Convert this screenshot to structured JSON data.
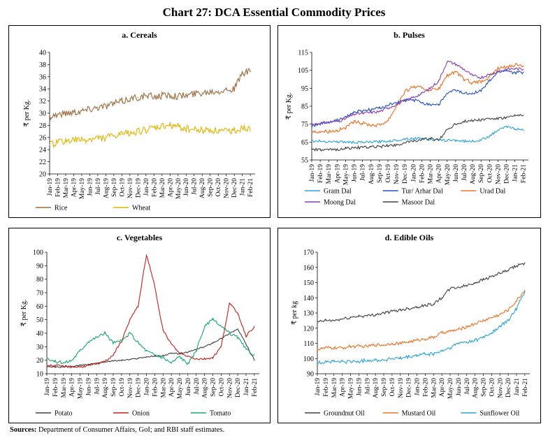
{
  "title": "Chart 27: DCA Essential Commodity Prices",
  "source_label": "Sources:",
  "source_text": "Department of Consumer Affairs, GoI; and RBI staff estimates.",
  "months": [
    "Jan-19",
    "Feb-19",
    "Mar-19",
    "Apr-19",
    "May-19",
    "Jun-19",
    "Jul-19",
    "Aug-19",
    "Sep-19",
    "Oct-19",
    "Nov-19",
    "Dec-19",
    "Jan-20",
    "Feb-20",
    "Mar-20",
    "Apr-20",
    "May-20",
    "Jun-20",
    "Jul-20",
    "Aug-20",
    "Sep-20",
    "Oct-20",
    "Nov-20",
    "Dec-20",
    "Jan-21",
    "Feb-21"
  ],
  "chart_data": [
    {
      "id": "a",
      "type": "line",
      "title": "a. Cereals",
      "ylabel": "₹ per Kg.",
      "ylim": [
        20,
        40
      ],
      "yticks": [
        20,
        22,
        24,
        26,
        28,
        30,
        32,
        34,
        36,
        38,
        40
      ],
      "xtick_labels": [
        "Jan-19",
        "Feb-19",
        "Mar-19",
        "Apr-19",
        "May-19",
        "Jun-19",
        "Jul-19",
        "Aug-19",
        "Sep-19",
        "Oct-19",
        "Nov-19",
        "Dec-19",
        "Jan-20",
        "Feb-20",
        "Mar-20",
        "Apr-20",
        "May-20",
        "Jun-20",
        "Jul-20",
        "Aug-20",
        "Sep-20",
        "Oct-20",
        "Nov-20",
        "Dec-20",
        "Jan-21",
        "Feb-21"
      ],
      "legend_position": "bottom",
      "series": [
        {
          "name": "Rice",
          "color": "#9c6b3c",
          "noise": 0.6,
          "values": [
            29.5,
            29.8,
            30.0,
            30.2,
            30.4,
            30.7,
            31.0,
            31.2,
            31.6,
            31.9,
            32.4,
            32.6,
            32.8,
            32.7,
            32.9,
            33.0,
            32.8,
            32.9,
            33.2,
            33.4,
            33.6,
            33.7,
            33.9,
            34.0,
            36.5,
            36.8
          ]
        },
        {
          "name": "Wheat",
          "color": "#e3b300",
          "noise": 0.6,
          "values": [
            24.8,
            25.2,
            25.4,
            25.6,
            25.5,
            25.7,
            25.9,
            26.0,
            26.2,
            26.5,
            26.8,
            27.0,
            27.2,
            27.5,
            27.8,
            28.0,
            27.8,
            27.5,
            27.3,
            27.2,
            27.3,
            27.1,
            27.0,
            27.2,
            27.6,
            27.1
          ]
        }
      ]
    },
    {
      "id": "b",
      "type": "line",
      "title": "b. Pulses",
      "ylabel": "₹ per Kg.",
      "ylim": [
        55,
        115
      ],
      "yticks": [
        55,
        65,
        75,
        85,
        95,
        105,
        115
      ],
      "xtick_labels": [
        "Jan-19",
        "Feb-19",
        "Mar-19",
        "Apr-19",
        "May-19",
        "Jun-19",
        "Jul-19",
        "Aug-19",
        "Sep-19",
        "Oct-19",
        "Nov-19",
        "Dec-19",
        "Jan-20",
        "Feb-20",
        "Mar-20",
        "Apr-20",
        "May-20",
        "Jun-20",
        "Jul-20",
        "Aug-20",
        "Sep-20",
        "Oct-20",
        "Nov-20",
        "Dec-20",
        "Jan-21",
        "Feb-21"
      ],
      "legend_position": "bottom",
      "series": [
        {
          "name": "Gram Dal",
          "color": "#2aa4dc",
          "noise": 0.7,
          "values": [
            65.5,
            65.5,
            65.3,
            65.2,
            65.0,
            64.8,
            64.8,
            65.0,
            65.2,
            65.5,
            66.0,
            66.8,
            67.0,
            67.0,
            66.5,
            65.8,
            66.0,
            66.0,
            65.5,
            65.5,
            66.0,
            68.5,
            71.5,
            73.5,
            72.5,
            71.5
          ]
        },
        {
          "name": "Tur/ Arhar Dal",
          "color": "#1f4fc8",
          "noise": 0.9,
          "values": [
            74.0,
            75.0,
            76.0,
            77.0,
            79.0,
            81.5,
            82.5,
            83.0,
            84.0,
            85.5,
            87.0,
            88.0,
            88.5,
            87.0,
            86.0,
            86.0,
            92.0,
            94.0,
            92.0,
            92.5,
            93.5,
            99.0,
            104.0,
            105.0,
            103.5,
            104.0
          ]
        },
        {
          "name": "Urad Dal",
          "color": "#f07020",
          "noise": 1.0,
          "values": [
            70.5,
            71.0,
            71.0,
            71.5,
            73.0,
            76.0,
            75.5,
            74.5,
            74.5,
            77.0,
            85.0,
            93.0,
            96.0,
            95.0,
            94.0,
            94.5,
            102.0,
            104.0,
            100.0,
            98.0,
            98.5,
            101.0,
            106.0,
            107.0,
            108.0,
            107.5
          ]
        },
        {
          "name": "Moong Dal",
          "color": "#8a3fb8",
          "noise": 0.8,
          "values": [
            75.0,
            75.5,
            76.0,
            76.5,
            78.0,
            80.5,
            81.0,
            81.5,
            82.0,
            84.0,
            86.0,
            88.0,
            90.0,
            92.0,
            95.0,
            99.0,
            110.0,
            108.5,
            105.5,
            102.0,
            101.0,
            102.5,
            104.5,
            105.5,
            106.0,
            105.5
          ]
        },
        {
          "name": "Masoor Dal",
          "color": "#404040",
          "noise": 0.8,
          "values": [
            61.0,
            60.5,
            60.5,
            61.0,
            61.5,
            61.8,
            62.0,
            62.2,
            62.5,
            63.0,
            63.5,
            64.5,
            65.5,
            66.5,
            67.0,
            66.0,
            72.0,
            75.0,
            76.5,
            77.0,
            77.5,
            78.0,
            78.0,
            78.5,
            79.5,
            80.0
          ]
        }
      ]
    },
    {
      "id": "c",
      "type": "line",
      "title": "c. Vegetables",
      "ylabel": "₹ per Kg.",
      "ylim": [
        10,
        100
      ],
      "yticks": [
        10,
        20,
        30,
        40,
        50,
        60,
        70,
        80,
        90,
        100
      ],
      "xtick_labels": [
        "Jan-19",
        "Feb-19",
        "Mar-19",
        "Apr-19",
        "May-19",
        "Jun-19",
        "Jul-19",
        "Aug-19",
        "Sep-19",
        "Oct-19",
        "Nov-19",
        "Dec-19",
        "Jan-20",
        "Feb-20",
        "Mar-20",
        "Apr-20",
        "May-20",
        "Jun-20",
        "Jul-20",
        "Aug-20",
        "Sep-20",
        "Oct-20",
        "Nov-20",
        "Dec-20",
        "Jan-21",
        "Feb-21"
      ],
      "legend_position": "bottom",
      "series": [
        {
          "name": "Potato",
          "color": "#404040",
          "noise": 0.5,
          "values": [
            15,
            15,
            15,
            15.5,
            16,
            17,
            18,
            19,
            19.5,
            20,
            20.5,
            21.5,
            22.5,
            23,
            23.5,
            25,
            25,
            26,
            28,
            30,
            33,
            36,
            40,
            43,
            32,
            20
          ]
        },
        {
          "name": "Onion",
          "color": "#c8201e",
          "noise": 0.8,
          "values": [
            16,
            16,
            15.5,
            15,
            15,
            16,
            17,
            19,
            24,
            34,
            50,
            60,
            98,
            75,
            42,
            32,
            25,
            23,
            21,
            21,
            22,
            30,
            62,
            55,
            38,
            45
          ]
        },
        {
          "name": "Tomato",
          "color": "#18a870",
          "noise": 1.2,
          "values": [
            22,
            19,
            18,
            20,
            27,
            34,
            37,
            40,
            33,
            34,
            40,
            33,
            27,
            24,
            22,
            18,
            23,
            17,
            27,
            45,
            50,
            45,
            40,
            37,
            28,
            24
          ]
        }
      ]
    },
    {
      "id": "d",
      "type": "line",
      "title": "d. Edible Oils",
      "ylabel": "₹ per kg",
      "ylim": [
        90,
        170
      ],
      "yticks": [
        90,
        100,
        110,
        120,
        130,
        140,
        150,
        160,
        170
      ],
      "xtick_labels": [
        "Jan-19",
        "Feb-19",
        "Mar-19",
        "Apr-19",
        "May-19",
        "Jun-19",
        "Jul-19",
        "Aug-19",
        "Sep-19",
        "Oct-19",
        "Nov-19",
        "Dec-19",
        "Jan-20",
        "Feb-20",
        "Mar-20",
        "Apr-20",
        "May-20",
        "Jun-20",
        "Jul-20",
        "Aug-20",
        "Sep-20",
        "Oct-20",
        "Nov-20",
        "Dec-20",
        "Jan-21",
        "Feb-21"
      ],
      "legend_position": "bottom",
      "series": [
        {
          "name": "Groundnut Oil",
          "color": "#404040",
          "noise": 1.0,
          "values": [
            124,
            125,
            125,
            126,
            127,
            128,
            128,
            129,
            130,
            131,
            132,
            133,
            134,
            135,
            136,
            140,
            146,
            147,
            148,
            150,
            152,
            154,
            156,
            158,
            161,
            163
          ]
        },
        {
          "name": "Mustard Oil",
          "color": "#f07020",
          "noise": 1.0,
          "values": [
            106,
            107,
            107,
            107,
            108,
            108,
            108,
            109,
            109,
            110,
            110,
            111,
            112,
            113,
            114,
            117,
            118,
            119,
            121,
            123,
            125,
            127,
            129,
            132,
            138,
            145
          ]
        },
        {
          "name": "Sunflower Oil",
          "color": "#2aa4dc",
          "noise": 1.2,
          "values": [
            97,
            98,
            98,
            98,
            98,
            98,
            99,
            99,
            99,
            100,
            100,
            101,
            102,
            103,
            103,
            105,
            107,
            110,
            111,
            112,
            114,
            117,
            121,
            125,
            133,
            144
          ]
        }
      ]
    }
  ]
}
